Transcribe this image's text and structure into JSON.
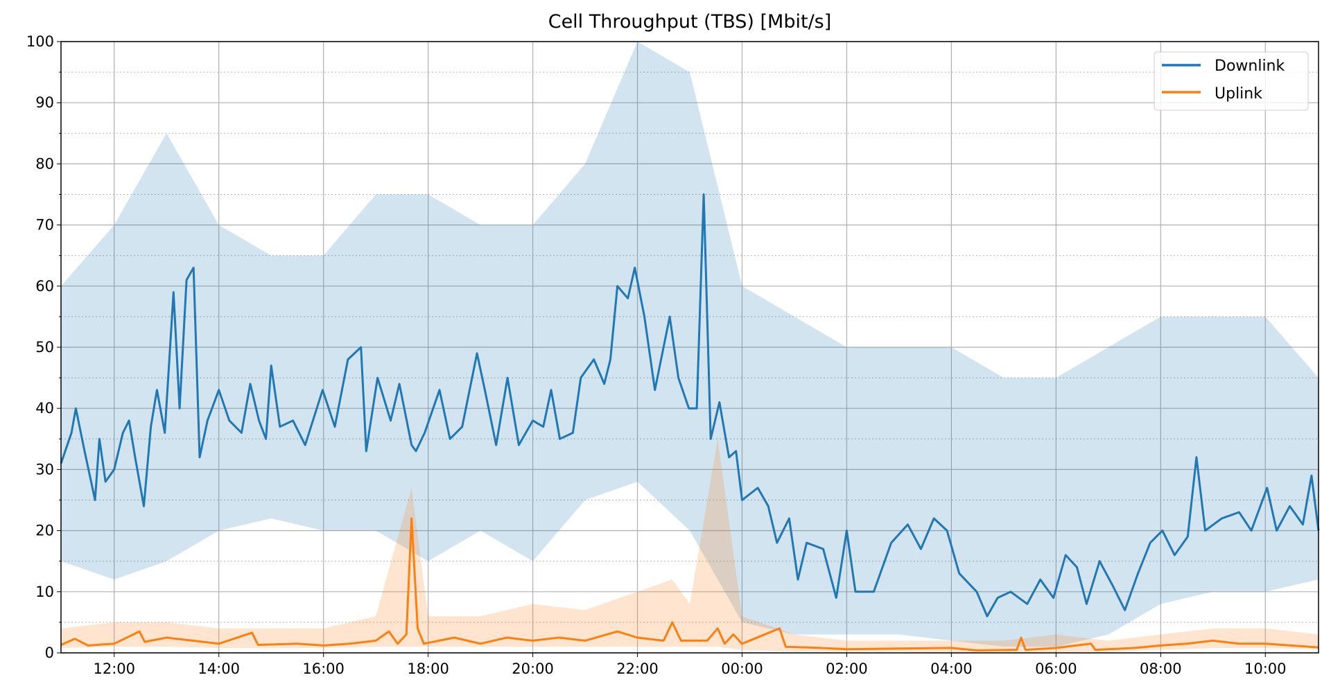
{
  "chart_data": {
    "type": "line",
    "title": "Cell Throughput (TBS) [Mbit/s]",
    "xlabel": "",
    "ylabel": "",
    "xlim": [
      "10:59",
      "11:01"
    ],
    "ylim": [
      0,
      100
    ],
    "x_ticks": [
      "12:00",
      "14:00",
      "16:00",
      "18:00",
      "20:00",
      "22:00",
      "00:00",
      "02:00",
      "04:00",
      "06:00",
      "08:00",
      "10:00"
    ],
    "y_ticks": [
      0,
      10,
      20,
      30,
      40,
      50,
      60,
      70,
      80,
      90,
      100
    ],
    "grid": {
      "major": true,
      "minor_y_dotted": true
    },
    "legend": "top-right",
    "series": [
      {
        "name": "Downlink",
        "color": "#1f77b4",
        "x": [
          "10:59",
          "11:11",
          "11:16",
          "11:26",
          "11:38",
          "11:43",
          "11:50",
          "12:00",
          "12:10",
          "12:17",
          "12:24",
          "12:34",
          "12:42",
          "12:49",
          "12:58",
          "13:08",
          "13:15",
          "13:23",
          "13:31",
          "13:38",
          "13:47",
          "14:00",
          "14:12",
          "14:26",
          "14:36",
          "14:46",
          "14:54",
          "15:00",
          "15:10",
          "15:25",
          "15:39",
          "15:59",
          "16:13",
          "16:28",
          "16:43",
          "16:49",
          "17:02",
          "17:17",
          "17:27",
          "17:41",
          "17:46",
          "17:56",
          "18:13",
          "18:25",
          "18:39",
          "18:56",
          "19:05",
          "19:18",
          "19:31",
          "19:44",
          "20:00",
          "20:12",
          "20:21",
          "20:31",
          "20:46",
          "20:55",
          "21:10",
          "21:22",
          "21:29",
          "21:37",
          "21:49",
          "21:57",
          "22:08",
          "22:20",
          "22:37",
          "22:47",
          "22:59",
          "23:08",
          "23:16",
          "23:24",
          "23:34",
          "23:45",
          "23:53",
          "00:00",
          "00:18",
          "00:30",
          "00:40",
          "00:54",
          "01:04",
          "01:14",
          "01:33",
          "01:48",
          "02:00",
          "02:10",
          "02:31",
          "02:51",
          "03:10",
          "03:25",
          "03:40",
          "03:55",
          "04:09",
          "04:29",
          "04:41",
          "04:53",
          "05:08",
          "05:27",
          "05:42",
          "05:57",
          "06:11",
          "06:24",
          "06:35",
          "06:50",
          "07:05",
          "07:19",
          "07:34",
          "07:48",
          "08:02",
          "08:16",
          "08:31",
          "08:41",
          "08:51",
          "09:10",
          "09:30",
          "09:44",
          "10:02",
          "10:13",
          "10:28",
          "10:43",
          "10:53",
          "11:01"
        ],
        "values": [
          31,
          36,
          40,
          33,
          25,
          35,
          28,
          30,
          36,
          38,
          32,
          24,
          37,
          43,
          36,
          59,
          40,
          61,
          63,
          32,
          38,
          43,
          38,
          36,
          44,
          38,
          35,
          47,
          37,
          38,
          34,
          43,
          37,
          48,
          50,
          33,
          45,
          38,
          44,
          34,
          33,
          36,
          43,
          35,
          37,
          49,
          43,
          34,
          45,
          34,
          38,
          37,
          43,
          35,
          36,
          45,
          48,
          44,
          48,
          60,
          58,
          63,
          55,
          43,
          55,
          45,
          40,
          40,
          75,
          35,
          41,
          32,
          33,
          25,
          27,
          24,
          18,
          22,
          12,
          18,
          17,
          9,
          20,
          10,
          10,
          18,
          21,
          17,
          22,
          20,
          13,
          10,
          6,
          9,
          10,
          8,
          12,
          9,
          16,
          14,
          8,
          15,
          11,
          7,
          13,
          18,
          20,
          16,
          19,
          32,
          20,
          22,
          23,
          20,
          27,
          20,
          24,
          21,
          29,
          20
        ]
      },
      {
        "name": "Uplink",
        "color": "#ff7f0e",
        "x": [
          "10:59",
          "11:15",
          "11:30",
          "12:00",
          "12:29",
          "12:35",
          "13:00",
          "13:30",
          "14:00",
          "14:38",
          "14:45",
          "15:30",
          "16:00",
          "16:30",
          "17:00",
          "17:15",
          "17:25",
          "17:35",
          "17:41",
          "17:48",
          "17:55",
          "18:30",
          "19:00",
          "19:30",
          "20:00",
          "20:30",
          "21:00",
          "21:37",
          "22:00",
          "22:30",
          "22:40",
          "22:50",
          "23:20",
          "23:32",
          "23:40",
          "23:50",
          "00:00",
          "00:43",
          "00:50",
          "01:30",
          "02:00",
          "03:00",
          "04:00",
          "04:30",
          "05:15",
          "05:20",
          "05:25",
          "06:00",
          "06:40",
          "06:45",
          "07:30",
          "08:00",
          "08:30",
          "09:00",
          "09:30",
          "10:00",
          "10:30",
          "11:01"
        ],
        "values": [
          1.3,
          2.3,
          1.2,
          1.5,
          3.5,
          1.8,
          2.5,
          2,
          1.5,
          3.3,
          1.3,
          1.5,
          1.2,
          1.5,
          2,
          3.5,
          1.5,
          3,
          22,
          4,
          1.5,
          2.5,
          1.5,
          2.5,
          2,
          2.5,
          2,
          3.5,
          2.5,
          2,
          5,
          2,
          2,
          4,
          1.5,
          3,
          1.5,
          4,
          1,
          0.8,
          0.6,
          0.7,
          0.8,
          0.4,
          0.5,
          2.5,
          0.5,
          0.8,
          1.5,
          0.5,
          0.8,
          1.2,
          1.5,
          2,
          1.5,
          1.5,
          1.2,
          0.9
        ]
      }
    ],
    "raw_bands": [
      {
        "of": "Downlink",
        "color": "#1f77b4",
        "opacity": 0.2,
        "x": [
          "10:59",
          "12:00",
          "13:00",
          "14:00",
          "15:00",
          "16:00",
          "17:00",
          "18:00",
          "19:00",
          "20:00",
          "21:00",
          "22:00",
          "23:00",
          "00:00",
          "01:00",
          "02:00",
          "03:00",
          "04:00",
          "05:00",
          "06:00",
          "07:00",
          "08:00",
          "09:00",
          "10:00",
          "11:01"
        ],
        "high": [
          60,
          70,
          85,
          70,
          65,
          65,
          75,
          75,
          70,
          70,
          80,
          100,
          95,
          60,
          55,
          50,
          50,
          50,
          45,
          45,
          50,
          55,
          55,
          55,
          45
        ],
        "low": [
          15,
          12,
          15,
          20,
          22,
          20,
          20,
          15,
          20,
          15,
          25,
          28,
          20,
          5,
          3,
          3,
          3,
          2,
          1,
          1,
          3,
          8,
          10,
          10,
          12
        ]
      },
      {
        "of": "Uplink",
        "color": "#ff7f0e",
        "opacity": 0.2,
        "x": [
          "10:59",
          "12:00",
          "13:00",
          "14:00",
          "15:00",
          "16:00",
          "17:00",
          "17:41",
          "18:00",
          "19:00",
          "20:00",
          "21:00",
          "22:00",
          "22:40",
          "23:00",
          "23:32",
          "00:00",
          "01:00",
          "02:00",
          "03:00",
          "04:00",
          "05:00",
          "06:00",
          "07:00",
          "08:00",
          "09:00",
          "10:00",
          "11:01"
        ],
        "high": [
          4,
          5,
          5,
          4,
          4,
          4,
          6,
          27,
          6,
          6,
          8,
          7,
          10,
          12,
          8,
          35,
          6,
          3,
          2,
          2,
          2,
          2,
          3,
          2,
          3,
          4,
          4,
          3
        ],
        "low": [
          0.8,
          1,
          1,
          0.8,
          0.8,
          0.8,
          1,
          1,
          1,
          1,
          1,
          1,
          1,
          1,
          1,
          1,
          0.5,
          0.2,
          0.2,
          0.2,
          0.1,
          0.1,
          0.1,
          0.2,
          0.5,
          0.8,
          0.8,
          0.6
        ]
      }
    ]
  }
}
